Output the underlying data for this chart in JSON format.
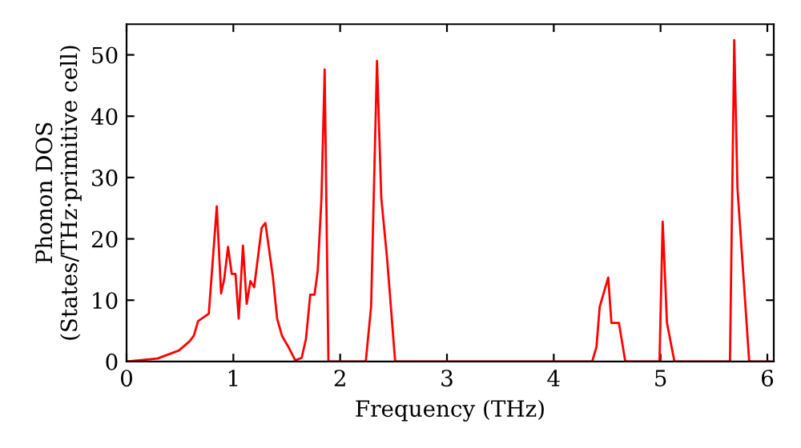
{
  "chart_data": {
    "type": "line",
    "xlabel": "Frequency (THz)",
    "ylabel": "Phonon DOS\n(States/THz·primitive cell)",
    "x": [
      0,
      0.29,
      0.49,
      0.59,
      0.63,
      0.67,
      0.77,
      0.845,
      0.885,
      0.915,
      0.95,
      0.985,
      1.02,
      1.05,
      1.09,
      1.125,
      1.16,
      1.195,
      1.265,
      1.3,
      1.37,
      1.41,
      1.455,
      1.515,
      1.58,
      1.64,
      1.68,
      1.72,
      1.76,
      1.79,
      1.825,
      1.855,
      1.89,
      2.24,
      2.29,
      2.345,
      2.385,
      2.44,
      2.515,
      4.36,
      4.4,
      4.43,
      4.51,
      4.54,
      4.61,
      4.67,
      4.99,
      5.02,
      5.06,
      5.13,
      5.65,
      5.69,
      5.72,
      5.83,
      6.03
    ],
    "series": [
      {
        "color": "#ff0000",
        "values": [
          0,
          0.5,
          1.8,
          3.3,
          4.2,
          6.6,
          7.8,
          25.3,
          11.1,
          13.5,
          18.7,
          14.3,
          14.3,
          7.0,
          18.9,
          9.4,
          13.1,
          12.1,
          21.8,
          22.6,
          13.8,
          7.0,
          4.2,
          2.4,
          0.2,
          0.6,
          3.7,
          10.9,
          10.9,
          14.8,
          26.7,
          47.6,
          0,
          0,
          9,
          49.0,
          26.7,
          16.7,
          0,
          0,
          2.4,
          8.9,
          13.7,
          6.3,
          6.3,
          0,
          0,
          22.8,
          6.3,
          0,
          0,
          52.4,
          28.3,
          0,
          0
        ]
      }
    ],
    "xlim": [
      0,
      6.06
    ],
    "ylim": [
      0,
      55
    ],
    "xticks": [
      0,
      1,
      2,
      3,
      4,
      5,
      6
    ],
    "yticks": [
      0,
      10,
      20,
      30,
      40,
      50
    ],
    "grid": false,
    "legend": false,
    "line_style": "solid",
    "marker": "none"
  }
}
